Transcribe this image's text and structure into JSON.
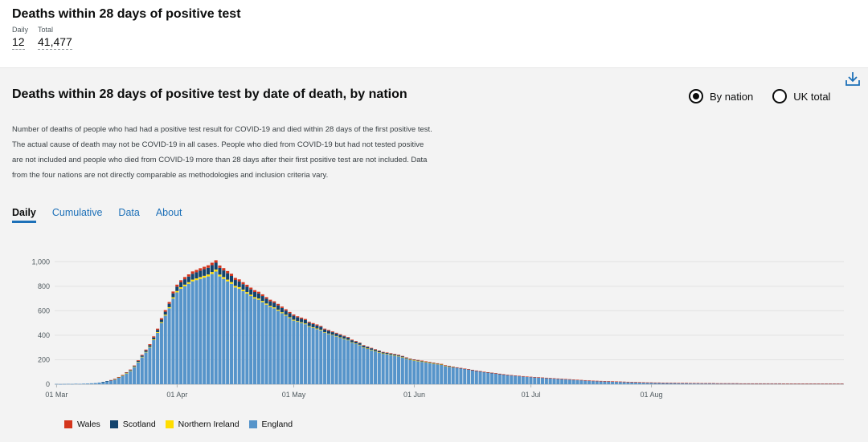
{
  "header": {
    "title": "Deaths within 28 days of positive test",
    "daily_label": "Daily",
    "daily_value": "12",
    "total_label": "Total",
    "total_value": "41,477"
  },
  "card": {
    "title": "Deaths within 28 days of positive test by date of death, by nation",
    "radio_nation": "By nation",
    "radio_uk": "UK total",
    "description": "Number of deaths of people who had had a positive test result for COVID-19 and died within 28 days of the first positive test. The actual cause of death may not be COVID-19 in all cases. People who died from COVID-19 but had not tested positive are not included and people who died from COVID-19 more than 28 days after their first positive test are not included. Data from the four nations are not directly comparable as methodologies and inclusion criteria vary.",
    "tabs": [
      {
        "label": "Daily",
        "active": true
      },
      {
        "label": "Cumulative",
        "active": false
      },
      {
        "label": "Data",
        "active": false
      },
      {
        "label": "About",
        "active": false
      }
    ]
  },
  "colors": {
    "england": "#5694ca",
    "northern_ireland": "#ffdd00",
    "scotland": "#12436d",
    "wales": "#d4351c",
    "link": "#1d70b8"
  },
  "chart_data": {
    "type": "bar",
    "stacked": true,
    "x_start": "2020-03-01",
    "x_ticks": [
      "01 Mar",
      "01 Apr",
      "01 May",
      "01 Jun",
      "01 Jul",
      "01 Aug"
    ],
    "y_ticks": [
      "0",
      "200",
      "400",
      "600",
      "800",
      "1,000"
    ],
    "ylim": [
      0,
      1100
    ],
    "grid": true,
    "legend_position": "bottom-left",
    "legend": [
      "Wales",
      "Scotland",
      "Northern Ireland",
      "England"
    ],
    "series": [
      {
        "name": "England",
        "values": [
          2,
          1,
          2,
          3,
          2,
          4,
          3,
          5,
          6,
          8,
          10,
          14,
          18,
          25,
          32,
          40,
          55,
          70,
          90,
          110,
          140,
          180,
          220,
          260,
          300,
          360,
          420,
          500,
          560,
          620,
          700,
          750,
          780,
          800,
          820,
          840,
          850,
          860,
          870,
          880,
          900,
          920,
          880,
          860,
          840,
          820,
          790,
          780,
          760,
          740,
          720,
          700,
          690,
          670,
          650,
          630,
          620,
          600,
          580,
          560,
          540,
          520,
          510,
          500,
          490,
          470,
          460,
          450,
          440,
          420,
          410,
          400,
          390,
          380,
          370,
          360,
          340,
          330,
          320,
          300,
          290,
          280,
          270,
          260,
          250,
          245,
          240,
          235,
          230,
          220,
          210,
          200,
          195,
          190,
          185,
          180,
          175,
          170,
          165,
          160,
          150,
          145,
          140,
          135,
          130,
          125,
          120,
          115,
          110,
          105,
          100,
          96,
          92,
          88,
          84,
          80,
          77,
          74,
          71,
          68,
          65,
          62,
          60,
          58,
          56,
          54,
          52,
          50,
          48,
          46,
          44,
          42,
          40,
          38,
          36,
          34,
          32,
          30,
          28,
          27,
          26,
          25,
          24,
          23,
          22,
          21,
          20,
          19,
          18,
          17,
          16,
          15,
          14,
          14,
          13,
          13,
          12,
          12,
          11,
          11,
          10,
          10,
          10,
          9,
          9,
          9,
          8,
          8,
          8,
          8,
          7,
          7,
          7,
          7,
          7,
          7,
          6,
          6,
          6,
          6,
          6,
          6,
          6,
          6,
          6,
          6,
          6,
          5,
          5,
          5,
          5,
          5,
          5,
          5,
          5,
          5,
          5,
          5,
          5,
          5,
          5,
          5,
          5
        ]
      },
      {
        "name": "Northern Ireland",
        "values": [
          0,
          0,
          0,
          0,
          0,
          0,
          0,
          0,
          0,
          0,
          0,
          0,
          0,
          0,
          0,
          1,
          1,
          1,
          2,
          2,
          3,
          3,
          4,
          4,
          5,
          6,
          6,
          7,
          8,
          9,
          10,
          11,
          12,
          13,
          13,
          14,
          14,
          15,
          15,
          16,
          16,
          16,
          15,
          15,
          14,
          14,
          13,
          13,
          12,
          12,
          11,
          11,
          10,
          10,
          9,
          9,
          8,
          8,
          8,
          7,
          7,
          7,
          6,
          6,
          6,
          5,
          5,
          5,
          5,
          4,
          4,
          4,
          4,
          3,
          3,
          3,
          3,
          3,
          2,
          2,
          2,
          2,
          2,
          2,
          2,
          2,
          2,
          1,
          1,
          1,
          1,
          1,
          1,
          1,
          1,
          1,
          1,
          1,
          1,
          1,
          1,
          1,
          1,
          0,
          0,
          0,
          0,
          0,
          0,
          0,
          0,
          0,
          0,
          0,
          0,
          0,
          0,
          0,
          0,
          0,
          0,
          0,
          0,
          0,
          0,
          0,
          0,
          0,
          0,
          0,
          0,
          0,
          0,
          0,
          0,
          0,
          0,
          0,
          0,
          0,
          0,
          0,
          0,
          0,
          0,
          0,
          0,
          0,
          0,
          0,
          0,
          0,
          0,
          0,
          0,
          0,
          0,
          0,
          0,
          0,
          0,
          0,
          0,
          0,
          0,
          0,
          0,
          0,
          0,
          0,
          0,
          0,
          0,
          0,
          0,
          0,
          0,
          0,
          0,
          0,
          0,
          0,
          0,
          0,
          0,
          0,
          0,
          0,
          0,
          0,
          0,
          0,
          0,
          0,
          0,
          0,
          0,
          0,
          0,
          0,
          0,
          0,
          0,
          0,
          0,
          0,
          0,
          0,
          0,
          0,
          0
        ]
      },
      {
        "name": "Scotland",
        "values": [
          0,
          0,
          0,
          0,
          0,
          0,
          0,
          0,
          0,
          0,
          0,
          0,
          1,
          1,
          1,
          2,
          2,
          3,
          4,
          5,
          6,
          8,
          10,
          12,
          14,
          16,
          18,
          20,
          24,
          28,
          32,
          36,
          40,
          44,
          46,
          48,
          50,
          52,
          54,
          55,
          56,
          56,
          55,
          54,
          52,
          50,
          48,
          46,
          45,
          44,
          43,
          42,
          41,
          40,
          39,
          38,
          37,
          36,
          35,
          34,
          33,
          32,
          30,
          29,
          28,
          27,
          26,
          25,
          24,
          23,
          22,
          21,
          20,
          19,
          18,
          17,
          16,
          15,
          14,
          13,
          12,
          11,
          10,
          10,
          9,
          9,
          8,
          8,
          7,
          7,
          6,
          6,
          5,
          5,
          5,
          4,
          4,
          4,
          3,
          3,
          3,
          3,
          2,
          2,
          2,
          2,
          2,
          1,
          1,
          1,
          1,
          1,
          1,
          1,
          1,
          1,
          0,
          0,
          0,
          0,
          0,
          0,
          0,
          0,
          0,
          0,
          0,
          0,
          0,
          0,
          0,
          0,
          0,
          0,
          0,
          0,
          0,
          0,
          0,
          0,
          0,
          0,
          0,
          0,
          0,
          0,
          0,
          0,
          0,
          0,
          0,
          0,
          0,
          0,
          0,
          0,
          0,
          0,
          0,
          0,
          0,
          0,
          0,
          0,
          0,
          0,
          0,
          0,
          0,
          0,
          0,
          0,
          0,
          0,
          0,
          0,
          0,
          0,
          0,
          0,
          0,
          0,
          0,
          0,
          0,
          0,
          0,
          0,
          0,
          0,
          0,
          0,
          0,
          0,
          0,
          0,
          0,
          0,
          0,
          0,
          0,
          0,
          0,
          0,
          0,
          0,
          0
        ]
      },
      {
        "name": "Wales",
        "values": [
          0,
          0,
          0,
          0,
          0,
          0,
          0,
          0,
          0,
          0,
          0,
          0,
          0,
          0,
          1,
          1,
          1,
          2,
          2,
          3,
          4,
          5,
          6,
          7,
          8,
          9,
          10,
          12,
          13,
          14,
          15,
          16,
          17,
          18,
          18,
          19,
          19,
          20,
          20,
          20,
          20,
          20,
          19,
          19,
          18,
          18,
          17,
          17,
          16,
          16,
          15,
          15,
          14,
          14,
          13,
          13,
          12,
          12,
          11,
          11,
          10,
          10,
          9,
          9,
          9,
          8,
          8,
          8,
          7,
          7,
          7,
          6,
          6,
          6,
          5,
          5,
          5,
          5,
          4,
          4,
          4,
          4,
          4,
          3,
          3,
          3,
          3,
          3,
          3,
          3,
          2,
          2,
          2,
          2,
          2,
          2,
          2,
          2,
          2,
          2,
          1,
          1,
          1,
          1,
          1,
          1,
          1,
          1,
          1,
          1,
          1,
          1,
          1,
          1,
          1,
          1,
          1,
          1,
          1,
          1,
          1,
          1,
          1,
          1,
          1,
          1,
          1,
          1,
          1,
          1,
          1,
          1,
          1,
          1,
          1,
          1,
          1,
          1,
          1,
          1,
          1,
          1,
          1,
          1,
          1,
          1,
          1,
          1,
          1,
          1,
          1,
          1,
          1,
          1,
          1,
          1,
          1,
          1,
          1,
          1,
          1,
          1,
          1,
          1,
          1,
          1,
          1,
          1,
          1,
          1,
          1,
          1,
          1,
          1,
          1,
          1,
          1,
          1,
          1,
          1,
          1,
          1,
          1,
          1,
          1,
          1,
          1,
          1,
          1,
          1,
          1,
          1,
          1,
          1,
          1,
          1,
          1,
          1,
          1,
          1,
          1,
          1,
          1,
          1,
          1,
          1,
          1
        ]
      }
    ]
  }
}
